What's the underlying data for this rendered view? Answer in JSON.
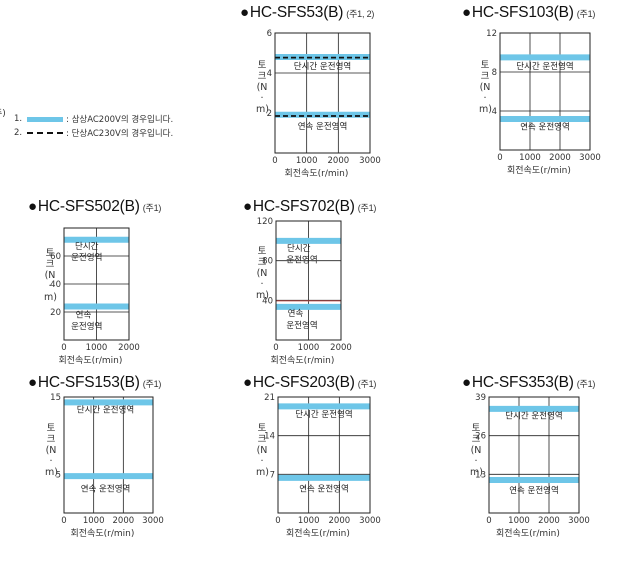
{
  "legend": {
    "mark": "주)",
    "items": [
      {
        "num": "1.",
        "style": "solid",
        "text": ": 삼상AC200V의 경우입니다."
      },
      {
        "num": "2.",
        "style": "dashed",
        "text": ": 단상AC230V의 경우입니다."
      }
    ]
  },
  "colors": {
    "band": "#6ec6e8",
    "grid": "#222222",
    "dashed": "#111111",
    "thin_line": "#c0504d"
  },
  "chart_data": [
    {
      "type": "line",
      "title": "HC-SFS53(B)",
      "note": "(주1, 2)",
      "ylabel": "토크(N·m)",
      "xlabel": "회전속도(r/min)",
      "xlim": [
        0,
        3000
      ],
      "ylim": [
        0,
        6
      ],
      "xticks": [
        "0",
        "1000",
        "2000",
        "3000"
      ],
      "yticks": [
        "2",
        "4",
        "6"
      ],
      "series": [
        {
          "values": [
            4.8,
            4.8
          ],
          "style": "solid"
        },
        {
          "values": [
            4.77,
            4.77
          ],
          "style": "dashed"
        },
        {
          "values": [
            1.91,
            1.91
          ],
          "style": "solid"
        },
        {
          "values": [
            1.85,
            1.85
          ],
          "style": "dashed"
        }
      ],
      "region_labels": [
        {
          "text": "단시간 운전영역",
          "x": 1500,
          "y": 4.2
        },
        {
          "text": "연속 운전영역",
          "x": 1500,
          "y": 1.2
        }
      ]
    },
    {
      "type": "line",
      "title": "HC-SFS103(B)",
      "note": "(주1)",
      "ylabel": "토크(N·m)",
      "xlabel": "회전속도(r/min)",
      "xlim": [
        0,
        3000
      ],
      "ylim": [
        0,
        12
      ],
      "xticks": [
        "0",
        "1000",
        "2000",
        "3000"
      ],
      "yticks": [
        "4",
        "8",
        "12"
      ],
      "series": [
        {
          "values": [
            9.5,
            9.5
          ],
          "style": "solid"
        },
        {
          "values": [
            3.18,
            3.18
          ],
          "style": "solid"
        }
      ],
      "region_labels": [
        {
          "text": "단시간 운전영역",
          "x": 1500,
          "y": 8.3
        },
        {
          "text": "연속 운전영역",
          "x": 1500,
          "y": 2.1
        }
      ]
    },
    {
      "type": "line",
      "title": "HC-SFS502(B)",
      "note": "(주1)",
      "ylabel": "토크(N·m)",
      "xlabel": "회전속도(r/min)",
      "xlim": [
        0,
        2000
      ],
      "ylim": [
        0,
        80
      ],
      "xticks": [
        "0",
        "1000",
        "2000"
      ],
      "yticks": [
        "20",
        "40",
        "60"
      ],
      "series": [
        {
          "values": [
            71.6,
            71.6
          ],
          "style": "solid"
        },
        {
          "values": [
            23.9,
            23.9
          ],
          "style": "solid"
        }
      ],
      "region_labels": [
        {
          "text": "단시간",
          "x": 700,
          "y": 65
        },
        {
          "text": "운전영역",
          "x": 700,
          "y": 57
        },
        {
          "text": "연속",
          "x": 600,
          "y": 16
        },
        {
          "text": "운전영역",
          "x": 700,
          "y": 8
        }
      ]
    },
    {
      "type": "line",
      "title": "HC-SFS702(B)",
      "note": "(주1)",
      "ylabel": "토크(N·m)",
      "xlabel": "회전속도(r/min)",
      "xlim": [
        0,
        2000
      ],
      "ylim": [
        0,
        120
      ],
      "xticks": [
        "0",
        "1000",
        "2000"
      ],
      "yticks": [
        "40",
        "80",
        "120"
      ],
      "series": [
        {
          "values": [
            100,
            100
          ],
          "style": "solid"
        },
        {
          "values": [
            39.5,
            39.5
          ],
          "style": "thin"
        },
        {
          "values": [
            33.4,
            33.4
          ],
          "style": "solid"
        }
      ],
      "region_labels": [
        {
          "text": "단시간",
          "x": 700,
          "y": 90
        },
        {
          "text": "운전영역",
          "x": 800,
          "y": 78
        },
        {
          "text": "연속",
          "x": 600,
          "y": 24
        },
        {
          "text": "운전영역",
          "x": 800,
          "y": 12
        }
      ]
    },
    {
      "type": "line",
      "title": "HC-SFS153(B)",
      "note": "(주1)",
      "ylabel": "토크(N·m)",
      "xlabel": "회전속도(r/min)",
      "xlim": [
        0,
        3000
      ],
      "ylim": [
        0,
        15
      ],
      "xticks": [
        "0",
        "1000",
        "2000",
        "3000"
      ],
      "yticks": [
        "5",
        "15"
      ],
      "series": [
        {
          "values": [
            14.3,
            14.3
          ],
          "style": "solid"
        },
        {
          "values": [
            4.77,
            4.77
          ],
          "style": "solid"
        }
      ],
      "region_labels": [
        {
          "text": "단시간 운전영역",
          "x": 1400,
          "y": 13.0
        },
        {
          "text": "연속 운전영역",
          "x": 1400,
          "y": 2.8
        }
      ]
    },
    {
      "type": "line",
      "title": "HC-SFS203(B)",
      "note": "(주1)",
      "ylabel": "토크(N·m)",
      "xlabel": "회전속도(r/min)",
      "xlim": [
        0,
        3000
      ],
      "ylim": [
        0,
        21
      ],
      "xticks": [
        "0",
        "1000",
        "2000",
        "3000"
      ],
      "yticks": [
        "7",
        "14",
        "21"
      ],
      "series": [
        {
          "values": [
            19.3,
            19.3
          ],
          "style": "solid"
        },
        {
          "values": [
            6.37,
            6.37
          ],
          "style": "solid"
        }
      ],
      "region_labels": [
        {
          "text": "단시간 운전영역",
          "x": 1500,
          "y": 17.4
        },
        {
          "text": "연속 운전영역",
          "x": 1500,
          "y": 3.9
        }
      ]
    },
    {
      "type": "line",
      "title": "HC-SFS353(B)",
      "note": "(주1)",
      "ylabel": "토크(N·m)",
      "xlabel": "회전속도(r/min)",
      "xlim": [
        0,
        3000
      ],
      "ylim": [
        0,
        39
      ],
      "xticks": [
        "0",
        "1000",
        "2000",
        "3000"
      ],
      "yticks": [
        "13",
        "26",
        "39"
      ],
      "series": [
        {
          "values": [
            35.0,
            35.0
          ],
          "style": "solid"
        },
        {
          "values": [
            11.1,
            11.1
          ],
          "style": "solid"
        }
      ],
      "region_labels": [
        {
          "text": "단시간 운전영역",
          "x": 1500,
          "y": 31.8
        },
        {
          "text": "연속 운전영역",
          "x": 1500,
          "y": 6.8
        }
      ]
    }
  ]
}
